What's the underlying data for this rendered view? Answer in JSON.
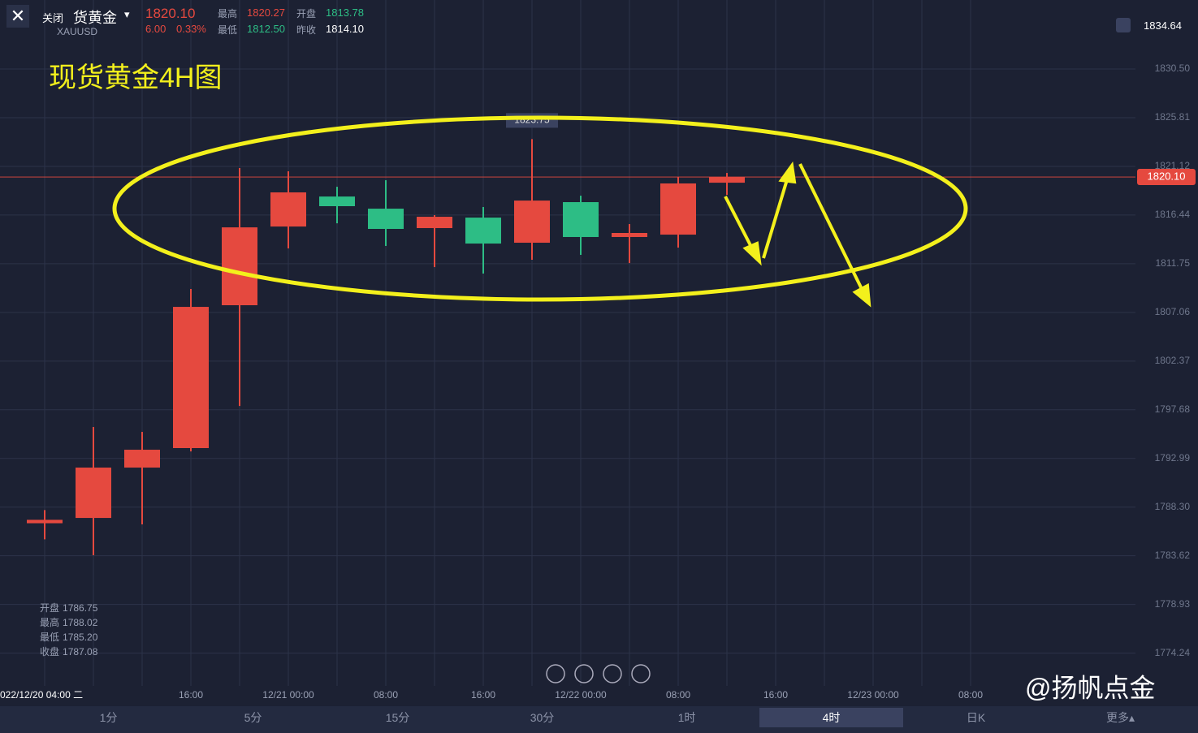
{
  "header": {
    "close_button": "关闭",
    "name": "货黄金",
    "symbol": "XAUUSD",
    "price": "1820.10",
    "change": "6.00",
    "change_pct": "0.33%",
    "high_label": "最高",
    "high": "1820.27",
    "open_label": "开盘",
    "open": "1813.78",
    "low_label": "最低",
    "low": "1812.50",
    "prev_close_label": "昨收",
    "prev_close": "1814.10",
    "alert_price": "1834.64"
  },
  "annotation": "现货黄金4H图",
  "info": [
    {
      "label": "开盘",
      "value": "1786.75"
    },
    {
      "label": "最高",
      "value": "1788.02"
    },
    {
      "label": "最低",
      "value": "1785.20"
    },
    {
      "label": "收盘",
      "value": "1787.08"
    }
  ],
  "tabs": [
    "1分",
    "5分",
    "15分",
    "30分",
    "1时",
    "4时",
    "日K",
    "更多▴"
  ],
  "active_tab": 5,
  "watermark": "@扬帆点金",
  "chart_data": {
    "type": "candlestick",
    "categories": [
      "022/12/20 04:00 二",
      null,
      null,
      "16:00",
      null,
      "12/21 00:00",
      null,
      "08:00",
      null,
      "16:00",
      null,
      "12/22 00:00",
      null,
      "08:00",
      null,
      "16:00",
      null,
      "12/23 00:00",
      null,
      "08:00"
    ],
    "open": [
      1786.75,
      1787.26,
      1792.11,
      1793.99,
      1807.75,
      1815.33,
      1818.22,
      1817.05,
      1815.18,
      1816.19,
      1813.77,
      1817.68,
      1814.32,
      1814.55,
      1819.55,
      null,
      null,
      null,
      null,
      null
    ],
    "high": [
      1788.02,
      1796.02,
      1795.55,
      1809.31,
      1820.96,
      1820.65,
      1819.16,
      1819.79,
      1816.43,
      1817.21,
      1823.75,
      1818.3,
      1815.57,
      1820.1,
      1820.49,
      null,
      null,
      null,
      null,
      null
    ],
    "low": [
      1785.2,
      1783.67,
      1786.64,
      1793.67,
      1798.05,
      1813.22,
      1815.64,
      1813.46,
      1811.42,
      1810.8,
      1812.13,
      1812.6,
      1811.81,
      1813.3,
      1818.38,
      null,
      null,
      null,
      null,
      null
    ],
    "close": [
      1787.08,
      1792.11,
      1793.83,
      1807.59,
      1815.25,
      1818.62,
      1817.29,
      1815.1,
      1816.27,
      1813.69,
      1817.83,
      1814.32,
      1814.71,
      1819.48,
      1820.1,
      null,
      null,
      null,
      null,
      null
    ],
    "high_label": {
      "index": 10,
      "label": "1823.75"
    },
    "up_color": "#e5493f",
    "down_color": "#2dbd85",
    "ylim": [
      1771.08,
      1837.15
    ],
    "yticks": [
      1774.24,
      1778.93,
      1783.62,
      {
        "value": 1788.3,
        "label": "1788.30"
      },
      1792.99,
      1797.68,
      1802.37,
      1807.06,
      1811.75,
      1816.44,
      1821.12,
      1825.81,
      {
        "value": 1830.5,
        "label": "1830.50"
      }
    ],
    "last_price": {
      "value": 1820.1,
      "label": "1820.10"
    },
    "grid": true
  }
}
